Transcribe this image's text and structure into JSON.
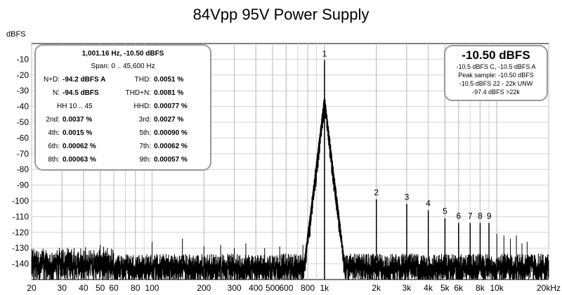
{
  "chart_data": {
    "type": "line",
    "title": "84Vpp 95V Power Supply",
    "ylabel": "dBFS",
    "xlabel": "",
    "x_scale": "log",
    "xlim": [
      20,
      20000
    ],
    "ylim": [
      -150,
      0
    ],
    "grid": true,
    "x_ticks": [
      {
        "v": 20,
        "t": "20"
      },
      {
        "v": 30,
        "t": "30"
      },
      {
        "v": 40,
        "t": "40"
      },
      {
        "v": 50,
        "t": "50"
      },
      {
        "v": 60,
        "t": "60"
      },
      {
        "v": 80,
        "t": "80"
      },
      {
        "v": 100,
        "t": "100"
      },
      {
        "v": 200,
        "t": "200"
      },
      {
        "v": 300,
        "t": "300"
      },
      {
        "v": 400,
        "t": "400"
      },
      {
        "v": 500,
        "t": "500"
      },
      {
        "v": 600,
        "t": "600"
      },
      {
        "v": 800,
        "t": "800"
      },
      {
        "v": 1000,
        "t": "1k"
      },
      {
        "v": 2000,
        "t": "2k"
      },
      {
        "v": 3000,
        "t": "3k"
      },
      {
        "v": 4000,
        "t": "4k"
      },
      {
        "v": 5000,
        "t": "5k"
      },
      {
        "v": 6000,
        "t": "6k"
      },
      {
        "v": 8000,
        "t": "8k"
      },
      {
        "v": 10000,
        "t": "10k"
      },
      {
        "v": 20000,
        "t": "20kHz"
      }
    ],
    "y_ticks": [
      -10,
      -20,
      -30,
      -40,
      -50,
      -60,
      -70,
      -80,
      -90,
      -100,
      -110,
      -120,
      -130,
      -140
    ],
    "noise_floor_db": -138,
    "fundamental": {
      "label": "1",
      "freq": 1001.16,
      "db": -10.5
    },
    "harmonics": [
      {
        "label": "2",
        "freq": 2002,
        "db": -99
      },
      {
        "label": "3",
        "freq": 3003,
        "db": -102
      },
      {
        "label": "4",
        "freq": 4005,
        "db": -106
      },
      {
        "label": "5",
        "freq": 5006,
        "db": -111
      },
      {
        "label": "6",
        "freq": 6007,
        "db": -114
      },
      {
        "label": "7",
        "freq": 7008,
        "db": -114
      },
      {
        "label": "8",
        "freq": 8009,
        "db": -114
      },
      {
        "label": "9",
        "freq": 9010,
        "db": -114
      }
    ],
    "minor_spurs": [
      {
        "freq": 50,
        "db": -128
      },
      {
        "freq": 100,
        "db": -126
      },
      {
        "freq": 150,
        "db": -124
      },
      {
        "freq": 200,
        "db": -129
      },
      {
        "freq": 250,
        "db": -128
      },
      {
        "freq": 300,
        "db": -130
      },
      {
        "freq": 350,
        "db": -127
      },
      {
        "freq": 450,
        "db": -130
      },
      {
        "freq": 550,
        "db": -129
      },
      {
        "freq": 750,
        "db": -128
      },
      {
        "freq": 10011,
        "db": -121
      },
      {
        "freq": 11000,
        "db": -122
      },
      {
        "freq": 12000,
        "db": -124
      },
      {
        "freq": 13000,
        "db": -122
      },
      {
        "freq": 14000,
        "db": -127
      },
      {
        "freq": 15000,
        "db": -126
      }
    ]
  },
  "stats": {
    "header1": "1,001.16 Hz, -10.50 dBFS",
    "header2": "Span: 0 .. 45,600 Hz",
    "nd_label": "N+D:",
    "nd_value": "-94.2 dBFS A",
    "thd_label": "THD:",
    "thd_value": "0.0051 %",
    "n_label": "N:",
    "n_value": "-94.5 dBFS",
    "thdn_label": "THD+N:",
    "thdn_value": "0.0081 %",
    "hh_label": "HH 10 .. 45",
    "hhd_label": "HHD:",
    "hhd_value": "0.00077 %",
    "h2_label": "2nd:",
    "h2_value": "0.0037 %",
    "h3_label": "3rd:",
    "h3_value": "0.0027 %",
    "h4_label": "4th:",
    "h4_value": "0.0015 %",
    "h5_label": "5th:",
    "h5_value": "0.00090 %",
    "h6_label": "6th:",
    "h6_value": "0.00062 %",
    "h7_label": "7th:",
    "h7_value": "0.00062 %",
    "h8_label": "8th:",
    "h8_value": "0.00063 %",
    "h9_label": "9th:",
    "h9_value": "0.00057 %"
  },
  "level": {
    "main": "-10.50 dBFS",
    "line1": "-10.5 dBFS C, -10.5 dBFS A",
    "line2": "Peak sample: -10.50 dBFS",
    "line3": "-10.5 dBFS 22 - 22k UNW",
    "line4": "-97.4 dBFS >22k"
  },
  "colors": {
    "trace": "#000000",
    "grid": "#d4d4d4",
    "axis": "#000000",
    "box_border": "#999999"
  }
}
